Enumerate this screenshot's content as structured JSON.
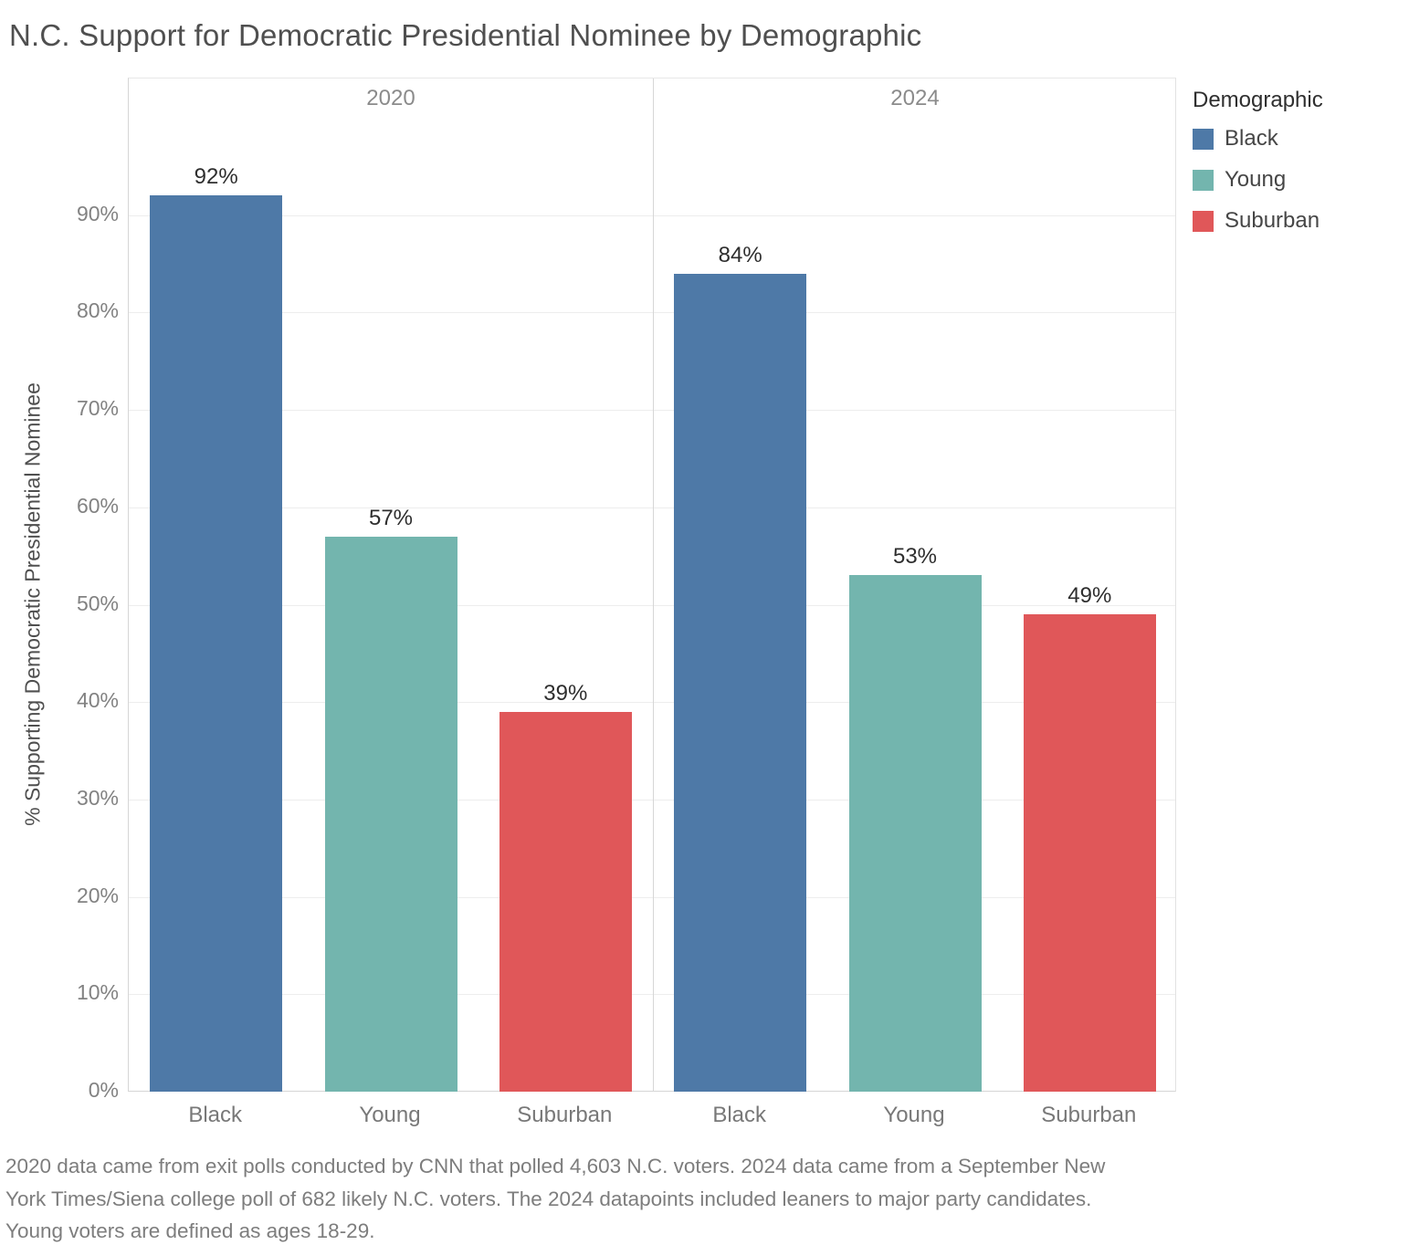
{
  "title": "N.C. Support for Democratic Presidential Nominee by Demographic",
  "chart_data": {
    "type": "bar",
    "title": "N.C. Support for Democratic Presidential Nominee by Demographic",
    "ylabel": "% Supporting Democratic Presidential Nominee",
    "xlabel": "",
    "ylim": [
      0,
      100
    ],
    "grid": true,
    "legend_position": "top-right",
    "yticks": [
      "0%",
      "10%",
      "20%",
      "30%",
      "40%",
      "50%",
      "60%",
      "70%",
      "80%",
      "90%"
    ],
    "panels": [
      {
        "label": "2020",
        "categories": [
          "Black",
          "Young",
          "Suburban"
        ],
        "values": [
          92,
          57,
          39
        ],
        "value_labels": [
          "92%",
          "57%",
          "39%"
        ]
      },
      {
        "label": "2024",
        "categories": [
          "Black",
          "Young",
          "Suburban"
        ],
        "values": [
          84,
          53,
          49
        ],
        "value_labels": [
          "84%",
          "53%",
          "49%"
        ]
      }
    ],
    "series_colors": {
      "Black": "#4e79a7",
      "Young": "#73b5ae",
      "Suburban": "#e05759"
    }
  },
  "legend": {
    "title": "Demographic",
    "items": [
      {
        "label": "Black",
        "color": "#4e79a7"
      },
      {
        "label": "Young",
        "color": "#73b5ae"
      },
      {
        "label": "Suburban",
        "color": "#e05759"
      }
    ]
  },
  "footnote": "2020 data came from exit polls conducted by CNN that polled 4,603 N.C. voters. 2024 data came from a September New York Times/Siena college poll of 682 likely N.C. voters. The 2024 datapoints included leaners to major party candidates. Young voters are defined as ages 18-29."
}
